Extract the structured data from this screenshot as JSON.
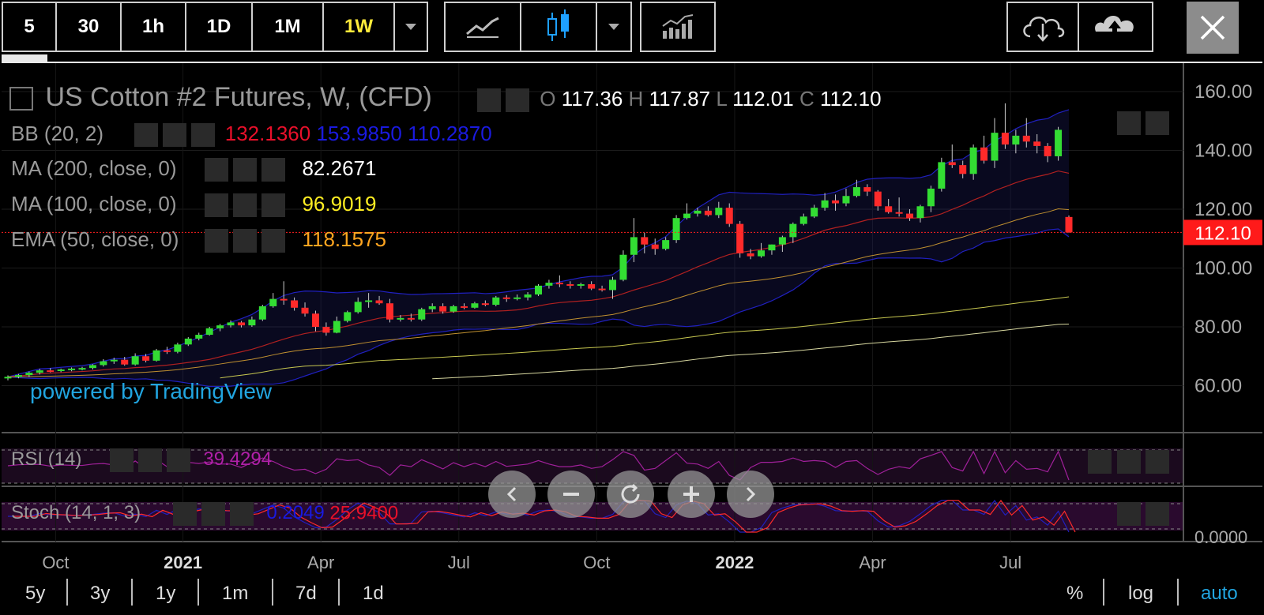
{
  "toolbar": {
    "intervals": [
      "5",
      "30",
      "1h",
      "1D",
      "1M",
      "1W"
    ],
    "active_interval": "1W",
    "icons": [
      "interval-dropdown-icon",
      "line-chart-icon",
      "candlestick-chart-icon",
      "chart-type-dropdown-icon",
      "indicators-icon",
      "cloud-download-icon",
      "cloud-upload-icon",
      "close-icon"
    ]
  },
  "legend": {
    "title": "US Cotton #2 Futures, W, (CFD)",
    "ohlc": {
      "o_label": "O",
      "o": "117.36",
      "h_label": "H",
      "h": "117.87",
      "l_label": "L",
      "l": "112.01",
      "c_label": "C",
      "c": "112.10"
    },
    "bb": {
      "label": "BB (20, 2)",
      "v1": "132.1360",
      "v2": "153.9850",
      "v3": "110.2870"
    },
    "ma200": {
      "label": "MA (200, close, 0)",
      "value": "82.2671"
    },
    "ma100": {
      "label": "MA (100, close, 0)",
      "value": "96.9019"
    },
    "ema50": {
      "label": "EMA (50, close, 0)",
      "value": "118.1575"
    },
    "rsi": {
      "label": "RSI (14)",
      "value": "39.4294"
    },
    "stoch": {
      "label": "Stoch (14, 1, 3)",
      "v1": "0.2049",
      "v2": "25.9400"
    },
    "watermark": "powered by TradingView"
  },
  "colors": {
    "up": "#33dd33",
    "down": "#ff2a2a",
    "bb_mid": "#b02020",
    "bb_band": "#2020c0",
    "ma200": "#d8d8a0",
    "ma100": "#c8c850",
    "ema50": "#c09030",
    "rsi": "#a0209a",
    "price_line": "#ff2020"
  },
  "chart_data": {
    "type": "candlestick",
    "title": "US Cotton #2 Futures, W, (CFD)",
    "ylim": [
      45,
      165
    ],
    "y_ticks": [
      "160.00",
      "140.00",
      "120.00",
      "100.00",
      "80.00",
      "60.00"
    ],
    "x_ticks": [
      "Oct",
      "2021",
      "Apr",
      "Jul",
      "Oct",
      "2022",
      "Apr",
      "Jul"
    ],
    "last_price": "112.10",
    "last_price_value": 112.1,
    "rsi_last_tick": "0.0000",
    "candles": [
      {
        "o": 62.5,
        "h": 63.5,
        "l": 61.8,
        "c": 63.0
      },
      {
        "o": 63.0,
        "h": 64.0,
        "l": 62.5,
        "c": 63.6
      },
      {
        "o": 63.6,
        "h": 64.8,
        "l": 62.9,
        "c": 64.4
      },
      {
        "o": 64.4,
        "h": 65.7,
        "l": 63.8,
        "c": 65.2
      },
      {
        "o": 65.2,
        "h": 66.0,
        "l": 64.5,
        "c": 65.0
      },
      {
        "o": 65.0,
        "h": 65.8,
        "l": 64.6,
        "c": 65.5
      },
      {
        "o": 65.5,
        "h": 66.2,
        "l": 64.9,
        "c": 65.8
      },
      {
        "o": 65.8,
        "h": 66.4,
        "l": 65.2,
        "c": 66.0
      },
      {
        "o": 66.0,
        "h": 67.3,
        "l": 65.5,
        "c": 67.0
      },
      {
        "o": 67.0,
        "h": 69.0,
        "l": 66.5,
        "c": 68.3
      },
      {
        "o": 68.3,
        "h": 69.5,
        "l": 67.4,
        "c": 68.8
      },
      {
        "o": 68.8,
        "h": 69.8,
        "l": 66.8,
        "c": 67.2
      },
      {
        "o": 67.2,
        "h": 71.0,
        "l": 66.8,
        "c": 70.0
      },
      {
        "o": 70.0,
        "h": 70.8,
        "l": 67.9,
        "c": 68.5
      },
      {
        "o": 68.5,
        "h": 72.5,
        "l": 68.2,
        "c": 72.0
      },
      {
        "o": 72.0,
        "h": 73.2,
        "l": 70.8,
        "c": 71.5
      },
      {
        "o": 71.5,
        "h": 74.6,
        "l": 71.0,
        "c": 74.0
      },
      {
        "o": 74.0,
        "h": 76.5,
        "l": 73.5,
        "c": 76.0
      },
      {
        "o": 76.0,
        "h": 78.0,
        "l": 75.4,
        "c": 77.3
      },
      {
        "o": 77.3,
        "h": 80.0,
        "l": 77.0,
        "c": 79.5
      },
      {
        "o": 79.5,
        "h": 81.0,
        "l": 78.5,
        "c": 80.5
      },
      {
        "o": 80.5,
        "h": 82.2,
        "l": 79.8,
        "c": 81.5
      },
      {
        "o": 81.5,
        "h": 82.0,
        "l": 79.8,
        "c": 80.5
      },
      {
        "o": 80.5,
        "h": 83.5,
        "l": 80.0,
        "c": 82.5
      },
      {
        "o": 82.5,
        "h": 87.5,
        "l": 82.0,
        "c": 87.0
      },
      {
        "o": 87.0,
        "h": 91.5,
        "l": 86.5,
        "c": 89.5
      },
      {
        "o": 89.5,
        "h": 95.5,
        "l": 87.5,
        "c": 89.0
      },
      {
        "o": 89.0,
        "h": 90.0,
        "l": 85.5,
        "c": 86.5
      },
      {
        "o": 86.5,
        "h": 88.3,
        "l": 83.5,
        "c": 84.5
      },
      {
        "o": 84.5,
        "h": 85.5,
        "l": 78.5,
        "c": 80.0
      },
      {
        "o": 80.0,
        "h": 81.5,
        "l": 77.0,
        "c": 78.0
      },
      {
        "o": 78.0,
        "h": 83.5,
        "l": 77.8,
        "c": 82.0
      },
      {
        "o": 82.0,
        "h": 85.5,
        "l": 81.5,
        "c": 85.0
      },
      {
        "o": 85.0,
        "h": 90.0,
        "l": 84.5,
        "c": 88.5
      },
      {
        "o": 88.5,
        "h": 91.5,
        "l": 86.5,
        "c": 89.0
      },
      {
        "o": 89.0,
        "h": 90.5,
        "l": 87.5,
        "c": 88.0
      },
      {
        "o": 88.0,
        "h": 89.5,
        "l": 81.5,
        "c": 82.5
      },
      {
        "o": 82.5,
        "h": 84.0,
        "l": 81.8,
        "c": 83.0
      },
      {
        "o": 83.0,
        "h": 84.5,
        "l": 81.8,
        "c": 82.5
      },
      {
        "o": 82.5,
        "h": 86.5,
        "l": 82.0,
        "c": 86.0
      },
      {
        "o": 86.0,
        "h": 88.0,
        "l": 85.0,
        "c": 87.0
      },
      {
        "o": 87.0,
        "h": 88.0,
        "l": 84.5,
        "c": 85.2
      },
      {
        "o": 85.2,
        "h": 87.5,
        "l": 84.8,
        "c": 87.0
      },
      {
        "o": 87.0,
        "h": 88.0,
        "l": 86.0,
        "c": 86.5
      },
      {
        "o": 86.5,
        "h": 88.5,
        "l": 86.2,
        "c": 88.0
      },
      {
        "o": 88.0,
        "h": 89.0,
        "l": 87.0,
        "c": 87.5
      },
      {
        "o": 87.5,
        "h": 90.5,
        "l": 87.0,
        "c": 90.0
      },
      {
        "o": 90.0,
        "h": 90.8,
        "l": 88.5,
        "c": 89.7
      },
      {
        "o": 89.7,
        "h": 91.0,
        "l": 89.0,
        "c": 90.0
      },
      {
        "o": 90.0,
        "h": 91.8,
        "l": 89.0,
        "c": 91.0
      },
      {
        "o": 91.0,
        "h": 94.5,
        "l": 90.5,
        "c": 94.0
      },
      {
        "o": 94.0,
        "h": 96.0,
        "l": 93.0,
        "c": 95.0
      },
      {
        "o": 95.0,
        "h": 97.5,
        "l": 93.5,
        "c": 94.5
      },
      {
        "o": 94.5,
        "h": 95.5,
        "l": 93.0,
        "c": 94.0
      },
      {
        "o": 94.0,
        "h": 95.0,
        "l": 93.0,
        "c": 94.5
      },
      {
        "o": 94.5,
        "h": 95.5,
        "l": 92.5,
        "c": 93.0
      },
      {
        "o": 93.0,
        "h": 94.0,
        "l": 92.0,
        "c": 92.5
      },
      {
        "o": 92.5,
        "h": 97.0,
        "l": 89.5,
        "c": 96.0
      },
      {
        "o": 96.0,
        "h": 106.0,
        "l": 95.5,
        "c": 104.5
      },
      {
        "o": 104.5,
        "h": 117.0,
        "l": 102.0,
        "c": 110.5
      },
      {
        "o": 110.5,
        "h": 112.0,
        "l": 105.0,
        "c": 108.0
      },
      {
        "o": 108.0,
        "h": 110.0,
        "l": 104.5,
        "c": 106.5
      },
      {
        "o": 106.5,
        "h": 110.5,
        "l": 106.0,
        "c": 109.5
      },
      {
        "o": 109.5,
        "h": 118.0,
        "l": 108.5,
        "c": 117.0
      },
      {
        "o": 117.0,
        "h": 122.0,
        "l": 116.5,
        "c": 118.5
      },
      {
        "o": 118.5,
        "h": 120.5,
        "l": 117.5,
        "c": 119.5
      },
      {
        "o": 119.5,
        "h": 121.0,
        "l": 117.5,
        "c": 118.0
      },
      {
        "o": 118.0,
        "h": 122.5,
        "l": 117.0,
        "c": 120.5
      },
      {
        "o": 120.5,
        "h": 122.0,
        "l": 114.0,
        "c": 115.0
      },
      {
        "o": 115.0,
        "h": 116.0,
        "l": 103.5,
        "c": 105.0
      },
      {
        "o": 105.0,
        "h": 106.5,
        "l": 103.0,
        "c": 104.0
      },
      {
        "o": 104.0,
        "h": 108.5,
        "l": 103.5,
        "c": 106.0
      },
      {
        "o": 106.0,
        "h": 108.0,
        "l": 104.5,
        "c": 108.0
      },
      {
        "o": 108.0,
        "h": 111.0,
        "l": 105.5,
        "c": 110.5
      },
      {
        "o": 110.5,
        "h": 115.5,
        "l": 108.5,
        "c": 115.0
      },
      {
        "o": 115.0,
        "h": 118.5,
        "l": 114.5,
        "c": 117.5
      },
      {
        "o": 117.5,
        "h": 121.5,
        "l": 117.0,
        "c": 120.5
      },
      {
        "o": 120.5,
        "h": 125.5,
        "l": 119.5,
        "c": 123.0
      },
      {
        "o": 123.0,
        "h": 125.0,
        "l": 119.5,
        "c": 122.0
      },
      {
        "o": 122.0,
        "h": 127.0,
        "l": 121.0,
        "c": 124.5
      },
      {
        "o": 124.5,
        "h": 130.0,
        "l": 124.0,
        "c": 127.5
      },
      {
        "o": 127.5,
        "h": 128.5,
        "l": 124.5,
        "c": 126.0
      },
      {
        "o": 126.0,
        "h": 126.5,
        "l": 119.5,
        "c": 121.0
      },
      {
        "o": 121.0,
        "h": 123.5,
        "l": 118.5,
        "c": 119.0
      },
      {
        "o": 119.0,
        "h": 124.0,
        "l": 117.5,
        "c": 118.5
      },
      {
        "o": 118.5,
        "h": 120.0,
        "l": 116.0,
        "c": 117.0
      },
      {
        "o": 117.0,
        "h": 121.5,
        "l": 115.5,
        "c": 121.0
      },
      {
        "o": 121.0,
        "h": 128.0,
        "l": 119.0,
        "c": 127.0
      },
      {
        "o": 127.0,
        "h": 137.5,
        "l": 126.0,
        "c": 136.0
      },
      {
        "o": 136.0,
        "h": 142.0,
        "l": 134.0,
        "c": 135.0
      },
      {
        "o": 135.0,
        "h": 136.5,
        "l": 130.5,
        "c": 132.0
      },
      {
        "o": 132.0,
        "h": 142.0,
        "l": 130.0,
        "c": 141.0
      },
      {
        "o": 141.0,
        "h": 145.0,
        "l": 135.5,
        "c": 136.5
      },
      {
        "o": 136.5,
        "h": 151.0,
        "l": 134.0,
        "c": 146.0
      },
      {
        "o": 146.0,
        "h": 156.0,
        "l": 140.5,
        "c": 142.0
      },
      {
        "o": 142.0,
        "h": 147.0,
        "l": 139.0,
        "c": 145.0
      },
      {
        "o": 145.0,
        "h": 151.0,
        "l": 141.0,
        "c": 143.0
      },
      {
        "o": 143.0,
        "h": 145.5,
        "l": 139.0,
        "c": 141.5
      },
      {
        "o": 141.5,
        "h": 142.5,
        "l": 136.0,
        "c": 138.0
      },
      {
        "o": 138.0,
        "h": 148.0,
        "l": 136.5,
        "c": 147.0
      },
      {
        "o": 117.36,
        "h": 117.87,
        "l": 112.01,
        "c": 112.1
      }
    ],
    "x_tick_index": [
      4.5,
      16.5,
      29.5,
      42.5,
      55.5,
      68.5,
      81.5,
      94.5
    ]
  },
  "bottom": {
    "ranges": [
      "5y",
      "3y",
      "1y",
      "1m",
      "7d",
      "1d"
    ],
    "options": [
      "%",
      "log",
      "auto"
    ]
  }
}
